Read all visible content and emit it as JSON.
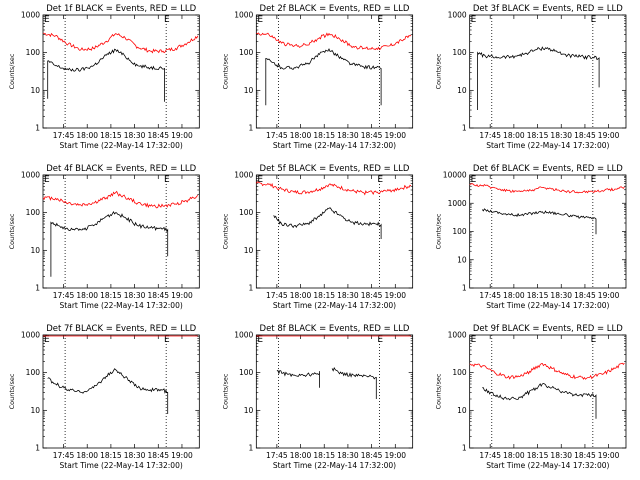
{
  "chart_data": [
    {
      "type": "line",
      "title": "Det 1f BLACK = Events, RED = LLD",
      "xlabel": "Start Time (22-May-14 17:32:00)",
      "ylabel": "Counts/sec",
      "yscale": "log",
      "xlim": [
        "17:32",
        "19:11"
      ],
      "ylim": [
        1,
        1000
      ],
      "x_ticks": [
        "17:45",
        "18:00",
        "18:15",
        "18:30",
        "18:45",
        "19:00"
      ],
      "y_ticks": [
        "1",
        "10",
        "100",
        "1000"
      ],
      "markers": [
        {
          "label": "E",
          "x": "17:32"
        },
        {
          "label": "E",
          "x": "18:48"
        }
      ],
      "vlines": [
        "17:46",
        "18:50"
      ],
      "series": [
        {
          "color": "#ff0000",
          "x": [
            "17:32",
            "17:40",
            "17:48",
            "17:56",
            "18:04",
            "18:12",
            "18:18",
            "18:24",
            "18:32",
            "18:40",
            "18:48",
            "18:56",
            "19:04",
            "19:10"
          ],
          "values": [
            330,
            280,
            170,
            120,
            130,
            200,
            320,
            250,
            140,
            110,
            110,
            130,
            190,
            280
          ]
        },
        {
          "color": "#000000",
          "x": [
            "17:35",
            "17:35",
            "17:40",
            "17:48",
            "17:56",
            "18:04",
            "18:12",
            "18:18",
            "18:24",
            "18:32",
            "18:40",
            "18:47",
            "18:49",
            "18:49"
          ],
          "values": [
            6,
            60,
            45,
            35,
            35,
            45,
            85,
            120,
            80,
            45,
            40,
            40,
            38,
            5
          ]
        }
      ]
    },
    {
      "type": "line",
      "title": "Det 2f BLACK = Events, RED = LLD",
      "xlabel": "Start Time (22-May-14 17:32:00)",
      "ylabel": "Counts/sec",
      "yscale": "log",
      "xlim": [
        "17:32",
        "19:11"
      ],
      "ylim": [
        1,
        1000
      ],
      "x_ticks": [
        "17:45",
        "18:00",
        "18:15",
        "18:30",
        "18:45",
        "19:00"
      ],
      "y_ticks": [
        "1",
        "10",
        "100",
        "1000"
      ],
      "markers": [
        {
          "label": "E",
          "x": "17:32"
        },
        {
          "label": "E",
          "x": "18:48"
        }
      ],
      "vlines": [
        "17:46",
        "18:50"
      ],
      "series": [
        {
          "color": "#ff0000",
          "x": [
            "17:32",
            "17:40",
            "17:48",
            "17:56",
            "18:04",
            "18:12",
            "18:18",
            "18:24",
            "18:32",
            "18:40",
            "18:48",
            "18:56",
            "19:04",
            "19:10"
          ],
          "values": [
            330,
            300,
            180,
            150,
            160,
            250,
            320,
            250,
            150,
            130,
            130,
            150,
            210,
            290
          ]
        },
        {
          "color": "#000000",
          "x": [
            "17:38",
            "17:38",
            "17:42",
            "17:48",
            "17:56",
            "18:04",
            "18:12",
            "18:18",
            "18:24",
            "18:32",
            "18:40",
            "18:48",
            "18:51",
            "18:51"
          ],
          "values": [
            4,
            70,
            55,
            40,
            40,
            50,
            90,
            125,
            80,
            50,
            42,
            40,
            38,
            4
          ]
        }
      ]
    },
    {
      "type": "line",
      "title": "Det 3f BLACK = Events, RED = LLD",
      "xlabel": "Start Time (22-May-14 17:32:00)",
      "ylabel": "Counts/sec",
      "yscale": "log",
      "xlim": [
        "17:32",
        "19:11"
      ],
      "ylim": [
        1,
        1000
      ],
      "x_ticks": [
        "17:45",
        "18:00",
        "18:15",
        "18:30",
        "18:45",
        "19:00"
      ],
      "y_ticks": [
        "1",
        "10",
        "100",
        "1000"
      ],
      "markers": [
        {
          "label": "E",
          "x": "17:32"
        },
        {
          "label": "E",
          "x": "18:48"
        }
      ],
      "vlines": [
        "17:46",
        "18:50"
      ],
      "series": [
        {
          "color": "#000000",
          "x": [
            "17:37",
            "17:37",
            "17:42",
            "17:50",
            "17:58",
            "18:06",
            "18:14",
            "18:20",
            "18:26",
            "18:34",
            "18:42",
            "18:50",
            "18:54",
            "18:54"
          ],
          "values": [
            3,
            100,
            80,
            75,
            78,
            90,
            120,
            135,
            110,
            85,
            78,
            75,
            72,
            12
          ]
        }
      ]
    },
    {
      "type": "line",
      "title": "Det 4f BLACK = Events, RED = LLD",
      "xlabel": "Start Time (22-May-14 17:32:00)",
      "ylabel": "Counts/sec",
      "yscale": "log",
      "xlim": [
        "17:32",
        "19:11"
      ],
      "ylim": [
        1,
        1000
      ],
      "x_ticks": [
        "17:45",
        "18:00",
        "18:15",
        "18:30",
        "18:45",
        "19:00"
      ],
      "y_ticks": [
        "1",
        "10",
        "100",
        "1000"
      ],
      "markers": [
        {
          "label": "E",
          "x": "17:32"
        },
        {
          "label": "E",
          "x": "18:48"
        }
      ],
      "vlines": [
        "17:46",
        "18:50"
      ],
      "series": [
        {
          "color": "#ff0000",
          "x": [
            "17:32",
            "17:40",
            "17:48",
            "17:56",
            "18:04",
            "18:12",
            "18:18",
            "18:24",
            "18:32",
            "18:40",
            "18:48",
            "18:56",
            "19:04",
            "19:10"
          ],
          "values": [
            250,
            240,
            180,
            160,
            180,
            250,
            340,
            260,
            180,
            150,
            150,
            170,
            220,
            290
          ]
        },
        {
          "color": "#000000",
          "x": [
            "17:37",
            "17:37",
            "17:42",
            "17:48",
            "17:56",
            "18:04",
            "18:12",
            "18:18",
            "18:24",
            "18:32",
            "18:40",
            "18:48",
            "18:51",
            "18:51"
          ],
          "values": [
            2,
            55,
            45,
            35,
            35,
            45,
            80,
            100,
            75,
            45,
            40,
            38,
            35,
            7
          ]
        }
      ]
    },
    {
      "type": "line",
      "title": "Det 5f BLACK = Events, RED = LLD",
      "xlabel": "Start Time (22-May-14 17:32:00)",
      "ylabel": "Counts/sec",
      "yscale": "log",
      "xlim": [
        "17:32",
        "19:11"
      ],
      "ylim": [
        1,
        1000
      ],
      "x_ticks": [
        "17:45",
        "18:00",
        "18:15",
        "18:30",
        "18:45",
        "19:00"
      ],
      "y_ticks": [
        "1",
        "10",
        "100",
        "1000"
      ],
      "markers": [
        {
          "label": "E",
          "x": "17:32"
        },
        {
          "label": "E",
          "x": "18:48"
        }
      ],
      "vlines": [
        "17:46",
        "18:50"
      ],
      "series": [
        {
          "color": "#ff0000",
          "x": [
            "17:32",
            "17:40",
            "17:48",
            "17:56",
            "18:04",
            "18:12",
            "18:18",
            "18:24",
            "18:32",
            "18:40",
            "18:48",
            "18:56",
            "19:04",
            "19:10"
          ],
          "values": [
            600,
            560,
            420,
            350,
            350,
            420,
            560,
            480,
            380,
            340,
            350,
            380,
            450,
            520
          ]
        },
        {
          "color": "#000000",
          "x": [
            "17:43",
            "17:48",
            "17:56",
            "18:04",
            "18:12",
            "18:18",
            "18:24",
            "18:32",
            "18:40",
            "18:48",
            "18:51",
            "18:51"
          ],
          "values": [
            85,
            50,
            45,
            50,
            80,
            130,
            90,
            55,
            50,
            50,
            48,
            20
          ]
        }
      ]
    },
    {
      "type": "line",
      "title": "Det 6f BLACK = Events, RED = LLD",
      "xlabel": "Start Time (22-May-14 17:32:00)",
      "ylabel": "Counts/sec",
      "yscale": "log",
      "xlim": [
        "17:32",
        "19:11"
      ],
      "ylim": [
        1,
        10000
      ],
      "x_ticks": [
        "17:45",
        "18:00",
        "18:15",
        "18:30",
        "18:45",
        "19:00"
      ],
      "y_ticks": [
        "1",
        "10",
        "100",
        "1000",
        "10000"
      ],
      "markers": [
        {
          "label": "E",
          "x": "17:32"
        },
        {
          "label": "E",
          "x": "18:48"
        }
      ],
      "vlines": [
        "17:46",
        "18:50"
      ],
      "series": [
        {
          "color": "#ff0000",
          "x": [
            "17:32",
            "17:40",
            "17:48",
            "17:56",
            "18:04",
            "18:12",
            "18:18",
            "18:24",
            "18:32",
            "18:40",
            "18:48",
            "18:56",
            "19:04",
            "19:10"
          ],
          "values": [
            4500,
            4300,
            3500,
            2800,
            2600,
            3000,
            3600,
            3200,
            2700,
            2500,
            2600,
            2800,
            3200,
            3800
          ]
        },
        {
          "color": "#000000",
          "x": [
            "17:40",
            "17:48",
            "17:56",
            "18:04",
            "18:12",
            "18:18",
            "18:24",
            "18:32",
            "18:40",
            "18:48",
            "18:52",
            "18:52"
          ],
          "values": [
            600,
            500,
            400,
            380,
            450,
            500,
            470,
            400,
            330,
            300,
            280,
            80
          ]
        }
      ]
    },
    {
      "type": "line",
      "title": "Det 7f BLACK = Events, RED = LLD",
      "xlabel": "Start Time (22-May-14 17:32:00)",
      "ylabel": "Counts/sec",
      "yscale": "log",
      "xlim": [
        "17:32",
        "19:11"
      ],
      "ylim": [
        1,
        1000
      ],
      "x_ticks": [
        "17:45",
        "18:00",
        "18:15",
        "18:30",
        "18:45",
        "19:00"
      ],
      "y_ticks": [
        "1",
        "10",
        "100",
        "1000"
      ],
      "markers": [
        {
          "label": "E",
          "x": "17:32"
        },
        {
          "label": "E",
          "x": "18:48"
        }
      ],
      "vlines": [
        "17:46",
        "18:50"
      ],
      "series": [
        {
          "color": "#ff0000",
          "x": [
            "17:32",
            "17:45",
            "18:00",
            "18:15",
            "18:30",
            "18:45",
            "19:00",
            "19:10"
          ],
          "values": [
            1100,
            1100,
            1100,
            1150,
            1100,
            1100,
            1100,
            1100
          ]
        },
        {
          "color": "#000000",
          "x": [
            "17:35",
            "17:40",
            "17:48",
            "17:56",
            "18:04",
            "18:12",
            "18:18",
            "18:24",
            "18:32",
            "18:40",
            "18:48",
            "18:51",
            "18:51"
          ],
          "values": [
            70,
            50,
            35,
            30,
            40,
            80,
            120,
            75,
            40,
            35,
            35,
            30,
            8
          ]
        }
      ]
    },
    {
      "type": "line",
      "title": "Det 8f BLACK = Events, RED = LLD",
      "xlabel": "Start Time (22-May-14 17:32:00)",
      "ylabel": "Counts/sec",
      "yscale": "log",
      "xlim": [
        "17:32",
        "19:11"
      ],
      "ylim": [
        1,
        1000
      ],
      "x_ticks": [
        "17:45",
        "18:00",
        "18:15",
        "18:30",
        "18:45",
        "19:00"
      ],
      "y_ticks": [
        "1",
        "10",
        "100",
        "1000"
      ],
      "markers": [
        {
          "label": "E",
          "x": "17:32"
        },
        {
          "label": "E",
          "x": "18:48"
        }
      ],
      "vlines": [
        "17:46",
        "18:50"
      ],
      "series": [
        {
          "color": "#ff0000",
          "x": [
            "17:32",
            "17:45",
            "18:00",
            "18:15",
            "18:30",
            "18:45",
            "19:00",
            "19:10"
          ],
          "values": [
            1100,
            1100,
            1100,
            1150,
            1100,
            1100,
            1100,
            1100
          ]
        },
        {
          "color": "#000000",
          "x": [
            "17:45",
            "17:52",
            "18:00",
            "18:07",
            "18:12",
            "18:12",
            "18:12"
          ],
          "values": [
            110,
            90,
            85,
            90,
            95,
            40,
            110
          ]
        },
        {
          "color": "#000000",
          "x": [
            "18:20",
            "18:20",
            "18:26",
            "18:34",
            "18:42",
            "18:48",
            "18:48"
          ],
          "values": [
            130,
            130,
            95,
            85,
            80,
            75,
            20
          ]
        }
      ]
    },
    {
      "type": "line",
      "title": "Det 9f BLACK = Events, RED = LLD",
      "xlabel": "Start Time (22-May-14 17:32:00)",
      "ylabel": "Counts/sec",
      "yscale": "log",
      "xlim": [
        "17:32",
        "19:11"
      ],
      "ylim": [
        1,
        1000
      ],
      "x_ticks": [
        "17:45",
        "18:00",
        "18:15",
        "18:30",
        "18:45",
        "19:00"
      ],
      "y_ticks": [
        "1",
        "10",
        "100",
        "1000"
      ],
      "markers": [
        {
          "label": "E",
          "x": "17:32"
        },
        {
          "label": "E",
          "x": "18:48"
        }
      ],
      "vlines": [
        "17:46",
        "18:50"
      ],
      "series": [
        {
          "color": "#ff0000",
          "x": [
            "17:32",
            "17:40",
            "17:48",
            "17:56",
            "18:04",
            "18:12",
            "18:18",
            "18:24",
            "18:32",
            "18:40",
            "18:48",
            "18:56",
            "19:04",
            "19:10"
          ],
          "values": [
            170,
            150,
            100,
            75,
            80,
            120,
            175,
            130,
            90,
            75,
            75,
            90,
            130,
            180
          ]
        },
        {
          "color": "#000000",
          "x": [
            "17:40",
            "17:48",
            "17:56",
            "18:04",
            "18:12",
            "18:18",
            "18:24",
            "18:32",
            "18:40",
            "18:48",
            "18:52",
            "18:52"
          ],
          "values": [
            40,
            25,
            20,
            22,
            35,
            50,
            40,
            30,
            25,
            25,
            25,
            6
          ]
        }
      ]
    }
  ]
}
